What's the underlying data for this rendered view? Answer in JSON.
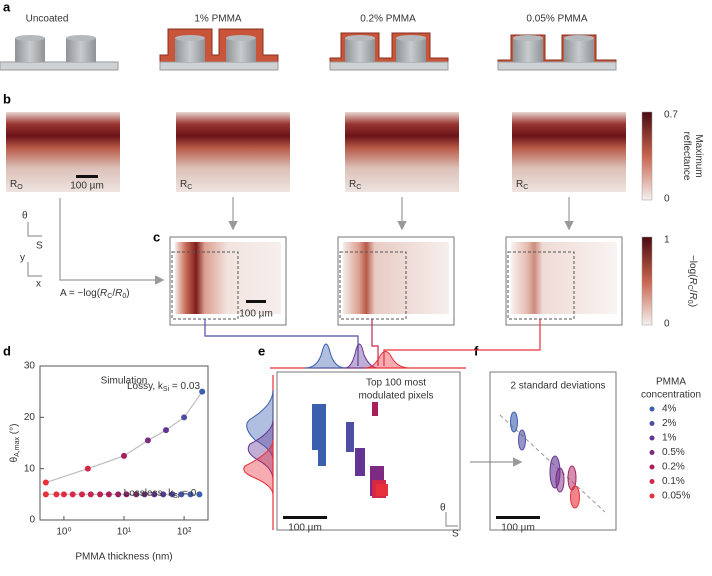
{
  "panel_labels": [
    "a",
    "b",
    "c",
    "d",
    "e",
    "f"
  ],
  "panel_a": {
    "titles": [
      "Uncoated",
      "1% PMMA",
      "0.2% PMMA",
      "0.05% PMMA"
    ]
  },
  "panel_b": {
    "image_labels": [
      [
        "R",
        "O"
      ],
      [
        "R",
        "C"
      ],
      [
        "R",
        "C"
      ],
      [
        "R",
        "C"
      ]
    ],
    "scale_bar": "100 µm",
    "colorbar": {
      "max": "0.7",
      "min": "0",
      "label": [
        "Maximum",
        "reflectance"
      ]
    },
    "axes_icon": {
      "upper": [
        "θ",
        "S"
      ],
      "lower": [
        "y",
        "x"
      ]
    },
    "formula": [
      "A = −log(",
      "R",
      "C",
      "/",
      "R",
      "0",
      ")"
    ]
  },
  "panel_c": {
    "scale_bar": "100 µm",
    "colorbar": {
      "max": "1",
      "min": "0",
      "label": [
        "−log(",
        "R",
        "C",
        "/",
        "R",
        "0",
        ")"
      ]
    }
  },
  "chart_data": {
    "type": "scatter",
    "title": "Simulation",
    "x_label": "PMMA thickness (nm)",
    "y_label": [
      "θ",
      "A,max",
      " (°)"
    ],
    "log_x": true,
    "xlim": [
      0.4,
      250
    ],
    "ylim": [
      0,
      30
    ],
    "xticks": [
      {
        "value": 1,
        "label": "10⁰"
      },
      {
        "value": 10,
        "label": "10¹"
      },
      {
        "value": 100,
        "label": "10²"
      }
    ],
    "yticks": [
      0,
      10,
      20,
      30
    ],
    "annotations": [
      [
        "Lossy, k",
        "Si",
        " = 0.03"
      ],
      [
        "Lossless, k",
        "Si",
        " = 0"
      ]
    ],
    "line_color": "#bdbdbd",
    "series": [
      {
        "x": [
          0.5,
          2.5,
          10,
          25,
          50,
          100,
          200
        ],
        "values": [
          7.3,
          10,
          12.5,
          15.5,
          17.5,
          20,
          25
        ],
        "colors": [
          "#e8303a",
          "#d42848",
          "#a81f5c",
          "#7d2a82",
          "#643494",
          "#4f4ea4",
          "#3a5fae"
        ]
      },
      {
        "x": [
          0.5,
          0.75,
          1,
          1.4,
          2,
          2.8,
          4,
          5.6,
          8,
          11,
          16,
          22,
          32,
          45,
          64,
          90,
          128,
          180
        ],
        "values": [
          5,
          5,
          5,
          5,
          5,
          5,
          5,
          5,
          5,
          5,
          5,
          5,
          5,
          5,
          5,
          5,
          5,
          5
        ],
        "colors": [
          "#e8303a",
          "#e82e3e",
          "#e02c42",
          "#d82a48",
          "#d0284c",
          "#c42650",
          "#b62354",
          "#a82058",
          "#9a205e",
          "#8c2466",
          "#7e2a76",
          "#702e82",
          "#64348e",
          "#5a3c98",
          "#4e46a0",
          "#4650a6",
          "#3e58aa",
          "#3a5fae"
        ]
      }
    ]
  },
  "panel_e": {
    "text": [
      "Top 100 most",
      "modulated pixels"
    ],
    "scale_bar": "100 µm",
    "axes_icon": [
      "θ",
      "S"
    ]
  },
  "panel_f": {
    "text": "2 standard deviations",
    "scale_bar": "100 µm",
    "legend_title": [
      "PMMA",
      "concentration"
    ],
    "legend": [
      {
        "label": "4%",
        "color": "#3a5fae"
      },
      {
        "label": "2%",
        "color": "#4f4ea4"
      },
      {
        "label": "1%",
        "color": "#643494"
      },
      {
        "label": "0.5%",
        "color": "#7d2a82"
      },
      {
        "label": "0.2%",
        "color": "#a81f5c"
      },
      {
        "label": "0.1%",
        "color": "#d42848"
      },
      {
        "label": "0.05%",
        "color": "#e8303a"
      }
    ]
  }
}
